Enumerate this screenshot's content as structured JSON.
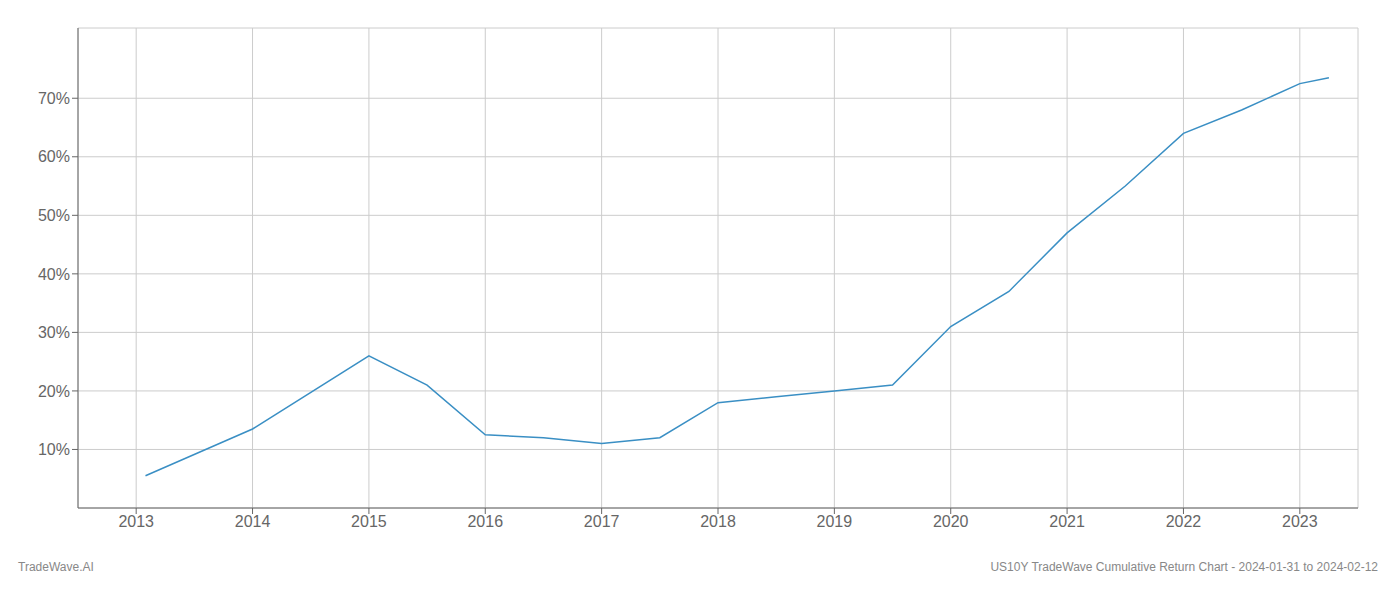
{
  "chart_data": {
    "type": "line",
    "x": [
      2013.08,
      2014.0,
      2015.0,
      2015.5,
      2016.0,
      2016.5,
      2017.0,
      2017.5,
      2018.0,
      2018.5,
      2019.0,
      2019.5,
      2020.0,
      2020.5,
      2021.0,
      2021.5,
      2022.0,
      2022.5,
      2023.0,
      2023.25
    ],
    "values": [
      5.5,
      13.5,
      26.0,
      21.0,
      12.5,
      12.0,
      11.0,
      12.0,
      18.0,
      19.0,
      20.0,
      21.0,
      31.0,
      37.0,
      47.0,
      55.0,
      64.0,
      68.0,
      72.5,
      73.5
    ],
    "color": "#3a8fc4",
    "xlim": [
      2012.5,
      2023.5
    ],
    "xticks": [
      2013,
      2014,
      2015,
      2016,
      2017,
      2018,
      2019,
      2020,
      2021,
      2022,
      2023
    ],
    "ylim": [
      0,
      82
    ],
    "yticks": [
      {
        "value": 10,
        "label": "10%"
      },
      {
        "value": 20,
        "label": "20%"
      },
      {
        "value": 30,
        "label": "30%"
      },
      {
        "value": 40,
        "label": "40%"
      },
      {
        "value": 50,
        "label": "50%"
      },
      {
        "value": 60,
        "label": "60%"
      },
      {
        "value": 70,
        "label": "70%"
      }
    ],
    "grid": true,
    "annotations": [
      "TradeWave.AI",
      "US10Y TradeWave Cumulative Return Chart - 2024-01-31 to 2024-02-12"
    ]
  }
}
